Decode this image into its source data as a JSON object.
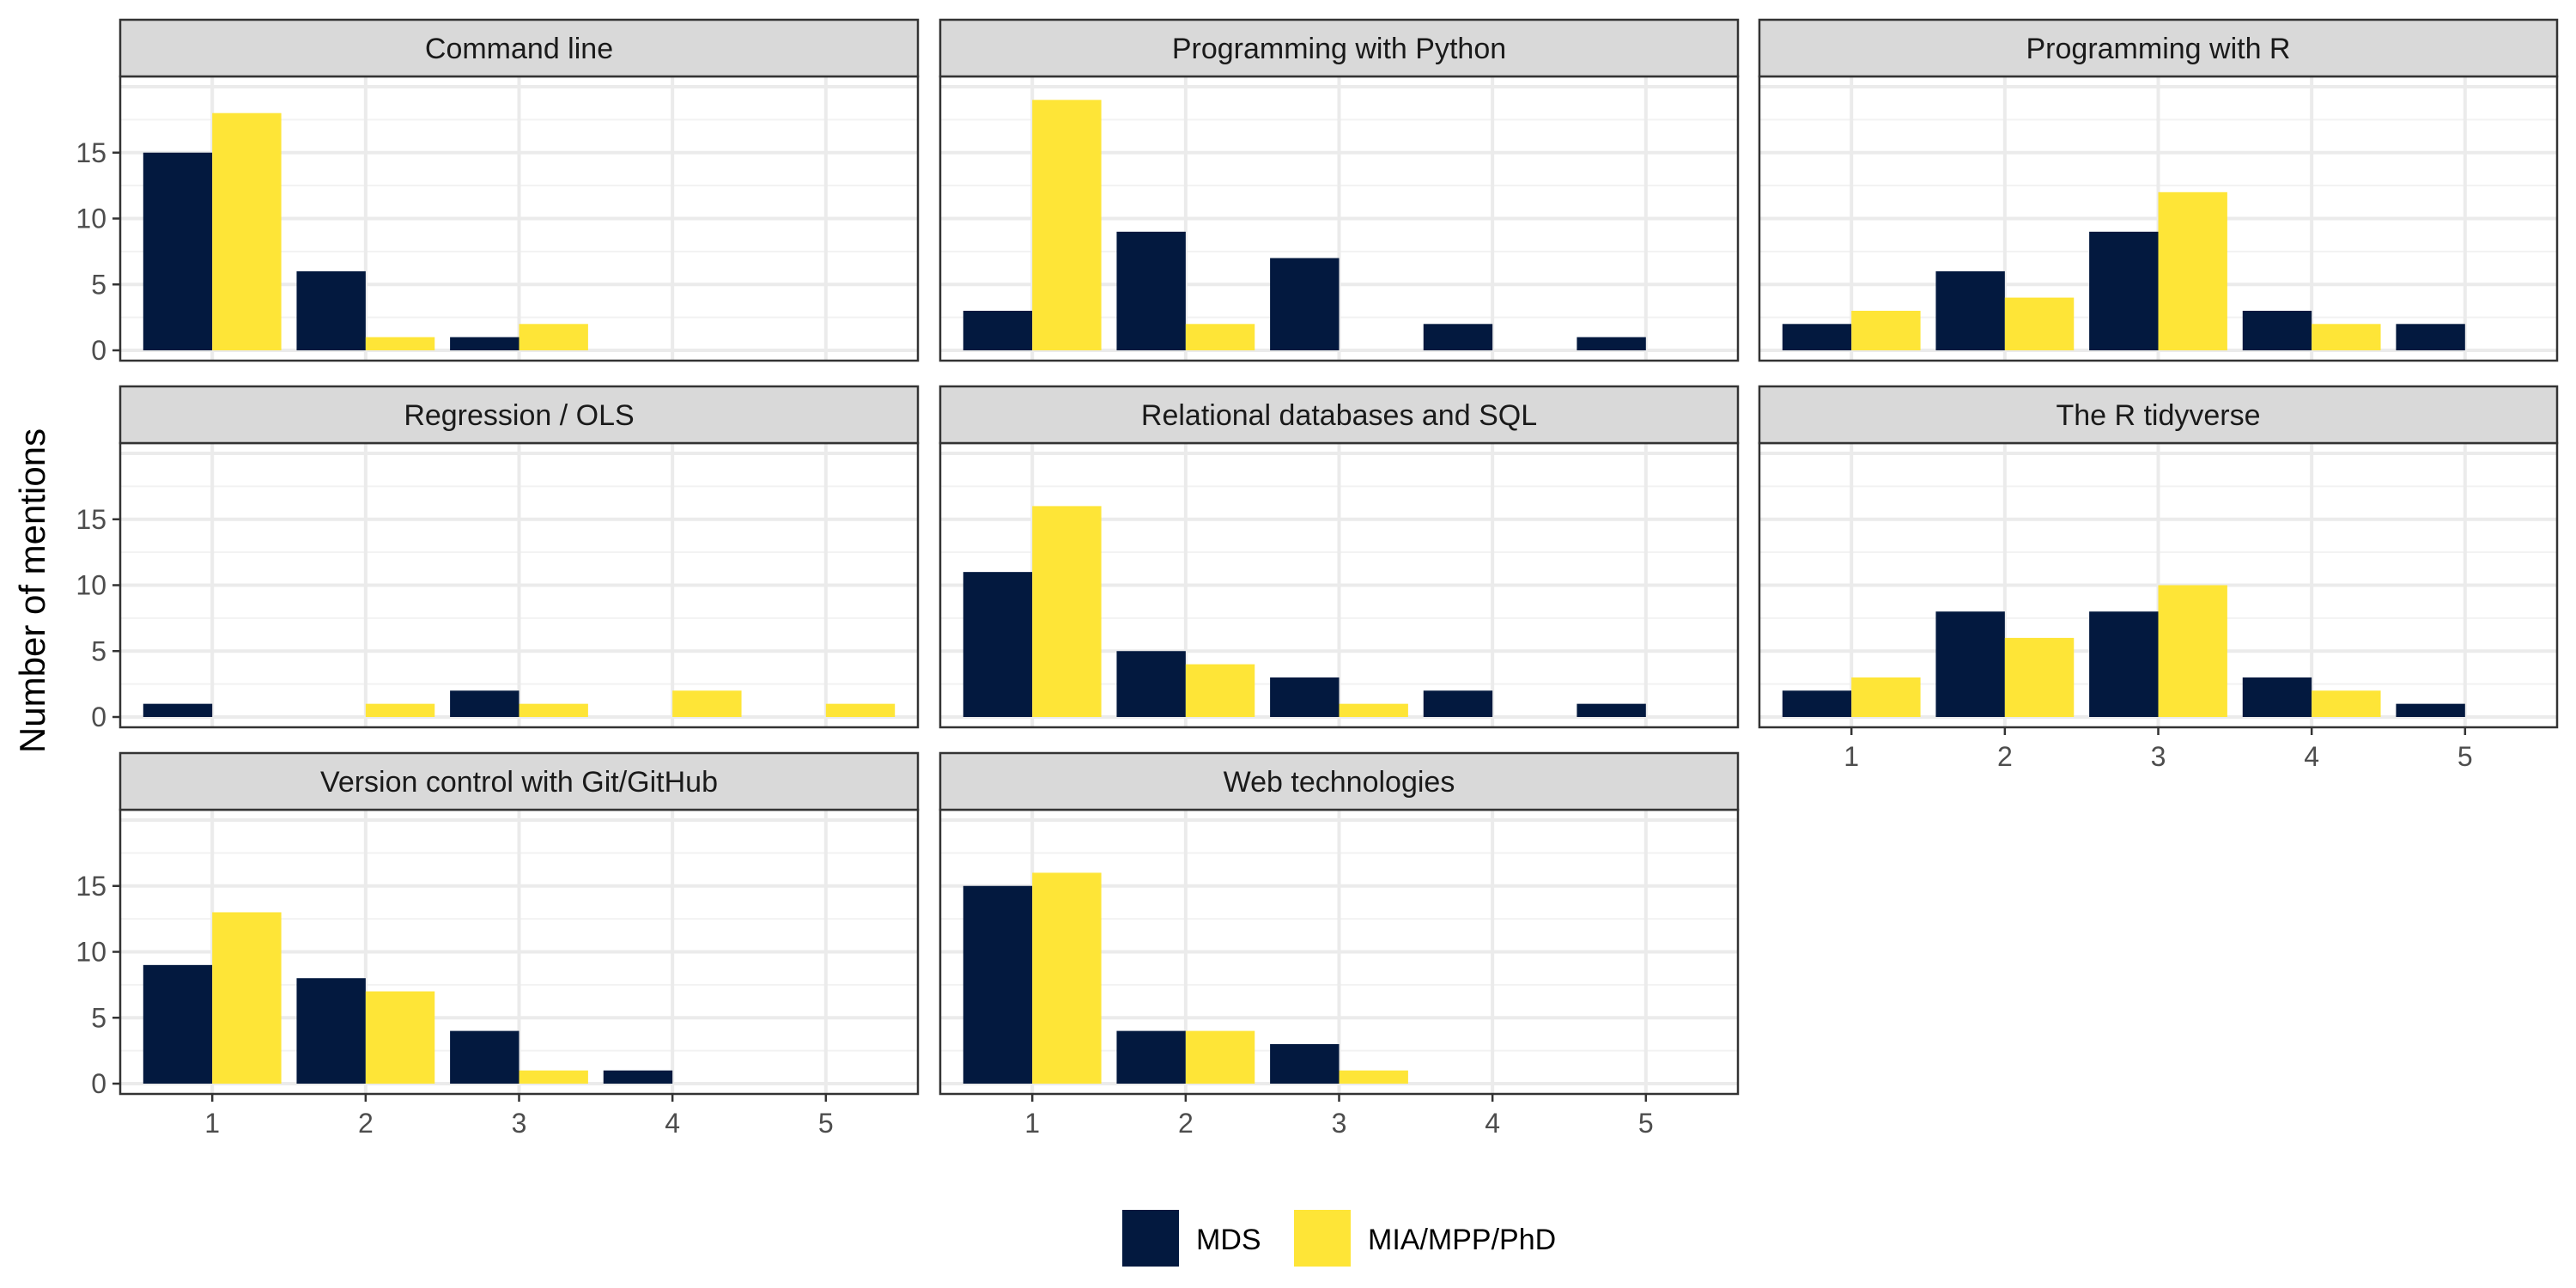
{
  "chart_data": {
    "type": "bar",
    "layout": "faceted",
    "ylabel": "Number of mentions",
    "xlabel": "",
    "x_categories": [
      "1",
      "2",
      "3",
      "4",
      "5"
    ],
    "y_ticks": [
      0,
      5,
      10,
      15
    ],
    "ylim": [
      0,
      20
    ],
    "legend_position": "bottom",
    "series_names": [
      "MDS",
      "MIA/MPP/PhD"
    ],
    "colors": {
      "MDS": "#03193f",
      "MIA/MPP/PhD": "#fee537"
    },
    "facets": [
      {
        "title": "Command line",
        "series": [
          {
            "name": "MDS",
            "values": [
              15,
              6,
              1,
              0,
              0
            ]
          },
          {
            "name": "MIA/MPP/PhD",
            "values": [
              18,
              1,
              2,
              0,
              0
            ]
          }
        ]
      },
      {
        "title": "Programming with Python",
        "series": [
          {
            "name": "MDS",
            "values": [
              3,
              9,
              7,
              2,
              1
            ]
          },
          {
            "name": "MIA/MPP/PhD",
            "values": [
              19,
              2,
              0,
              0,
              0
            ]
          }
        ]
      },
      {
        "title": "Programming with R",
        "series": [
          {
            "name": "MDS",
            "values": [
              2,
              6,
              9,
              3,
              2
            ]
          },
          {
            "name": "MIA/MPP/PhD",
            "values": [
              3,
              4,
              12,
              2,
              0
            ]
          }
        ]
      },
      {
        "title": "Regression / OLS",
        "series": [
          {
            "name": "MDS",
            "values": [
              1,
              0,
              2,
              0,
              0
            ]
          },
          {
            "name": "MIA/MPP/PhD",
            "values": [
              0,
              1,
              1,
              2,
              1
            ]
          }
        ]
      },
      {
        "title": "Relational databases and SQL",
        "series": [
          {
            "name": "MDS",
            "values": [
              11,
              5,
              3,
              2,
              1
            ]
          },
          {
            "name": "MIA/MPP/PhD",
            "values": [
              16,
              4,
              1,
              0,
              0
            ]
          }
        ]
      },
      {
        "title": "The R tidyverse",
        "series": [
          {
            "name": "MDS",
            "values": [
              2,
              8,
              8,
              3,
              1
            ]
          },
          {
            "name": "MIA/MPP/PhD",
            "values": [
              3,
              6,
              10,
              2,
              0
            ]
          }
        ]
      },
      {
        "title": "Version control with Git/GitHub",
        "series": [
          {
            "name": "MDS",
            "values": [
              9,
              8,
              4,
              1,
              0
            ]
          },
          {
            "name": "MIA/MPP/PhD",
            "values": [
              13,
              7,
              1,
              0,
              0
            ]
          }
        ]
      },
      {
        "title": "Web technologies",
        "series": [
          {
            "name": "MDS",
            "values": [
              15,
              4,
              3,
              0,
              0
            ]
          },
          {
            "name": "MIA/MPP/PhD",
            "values": [
              16,
              4,
              1,
              0,
              0
            ]
          }
        ]
      }
    ]
  }
}
